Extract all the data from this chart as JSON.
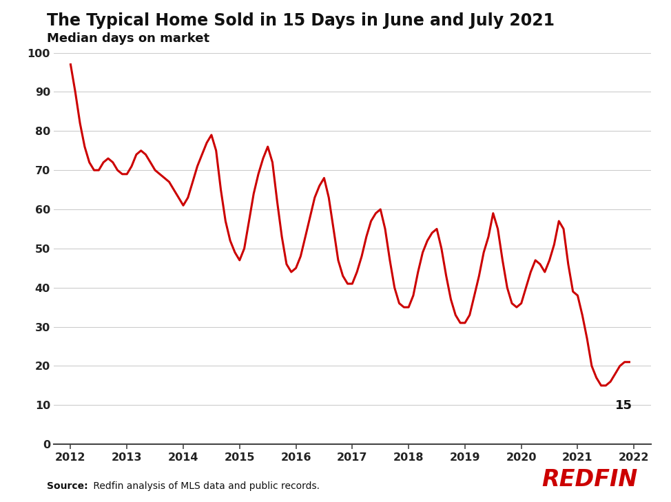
{
  "title": "The Typical Home Sold in 15 Days in June and July 2021",
  "subtitle": "Median days on market",
  "source_bold": "Source:",
  "source_rest": " Redfin analysis of MLS data and public records.",
  "line_color": "#cc0000",
  "background_color": "#ffffff",
  "grid_color": "#cccccc",
  "ylim": [
    0,
    100
  ],
  "yticks": [
    0,
    10,
    20,
    30,
    40,
    50,
    60,
    70,
    80,
    90,
    100
  ],
  "annotation_value": "15",
  "redfin_color": "#cc0000",
  "x_values": [
    2012.0,
    2012.083,
    2012.167,
    2012.25,
    2012.333,
    2012.417,
    2012.5,
    2012.583,
    2012.667,
    2012.75,
    2012.833,
    2012.917,
    2013.0,
    2013.083,
    2013.167,
    2013.25,
    2013.333,
    2013.417,
    2013.5,
    2013.583,
    2013.667,
    2013.75,
    2013.833,
    2013.917,
    2014.0,
    2014.083,
    2014.167,
    2014.25,
    2014.333,
    2014.417,
    2014.5,
    2014.583,
    2014.667,
    2014.75,
    2014.833,
    2014.917,
    2015.0,
    2015.083,
    2015.167,
    2015.25,
    2015.333,
    2015.417,
    2015.5,
    2015.583,
    2015.667,
    2015.75,
    2015.833,
    2015.917,
    2016.0,
    2016.083,
    2016.167,
    2016.25,
    2016.333,
    2016.417,
    2016.5,
    2016.583,
    2016.667,
    2016.75,
    2016.833,
    2016.917,
    2017.0,
    2017.083,
    2017.167,
    2017.25,
    2017.333,
    2017.417,
    2017.5,
    2017.583,
    2017.667,
    2017.75,
    2017.833,
    2017.917,
    2018.0,
    2018.083,
    2018.167,
    2018.25,
    2018.333,
    2018.417,
    2018.5,
    2018.583,
    2018.667,
    2018.75,
    2018.833,
    2018.917,
    2019.0,
    2019.083,
    2019.167,
    2019.25,
    2019.333,
    2019.417,
    2019.5,
    2019.583,
    2019.667,
    2019.75,
    2019.833,
    2019.917,
    2020.0,
    2020.083,
    2020.167,
    2020.25,
    2020.333,
    2020.417,
    2020.5,
    2020.583,
    2020.667,
    2020.75,
    2020.833,
    2020.917,
    2021.0,
    2021.083,
    2021.167,
    2021.25,
    2021.333,
    2021.417,
    2021.5,
    2021.583,
    2021.667,
    2021.75,
    2021.833,
    2021.917
  ],
  "y_values": [
    97,
    90,
    82,
    76,
    72,
    70,
    70,
    72,
    73,
    72,
    70,
    69,
    69,
    71,
    74,
    75,
    74,
    72,
    70,
    69,
    68,
    67,
    65,
    63,
    61,
    63,
    67,
    71,
    74,
    77,
    79,
    75,
    65,
    57,
    52,
    49,
    47,
    50,
    57,
    64,
    69,
    73,
    76,
    72,
    62,
    53,
    46,
    44,
    45,
    48,
    53,
    58,
    63,
    66,
    68,
    63,
    55,
    47,
    43,
    41,
    41,
    44,
    48,
    53,
    57,
    59,
    60,
    55,
    47,
    40,
    36,
    35,
    35,
    38,
    44,
    49,
    52,
    54,
    55,
    50,
    43,
    37,
    33,
    31,
    31,
    33,
    38,
    43,
    49,
    53,
    59,
    55,
    47,
    40,
    36,
    35,
    36,
    40,
    44,
    47,
    46,
    44,
    47,
    51,
    57,
    55,
    46,
    39,
    38,
    33,
    27,
    20,
    17,
    15,
    15,
    16,
    18,
    20,
    21,
    21
  ],
  "xlim": [
    2011.7,
    2022.3
  ],
  "xticks": [
    2012,
    2013,
    2014,
    2015,
    2016,
    2017,
    2018,
    2019,
    2020,
    2021,
    2022
  ]
}
